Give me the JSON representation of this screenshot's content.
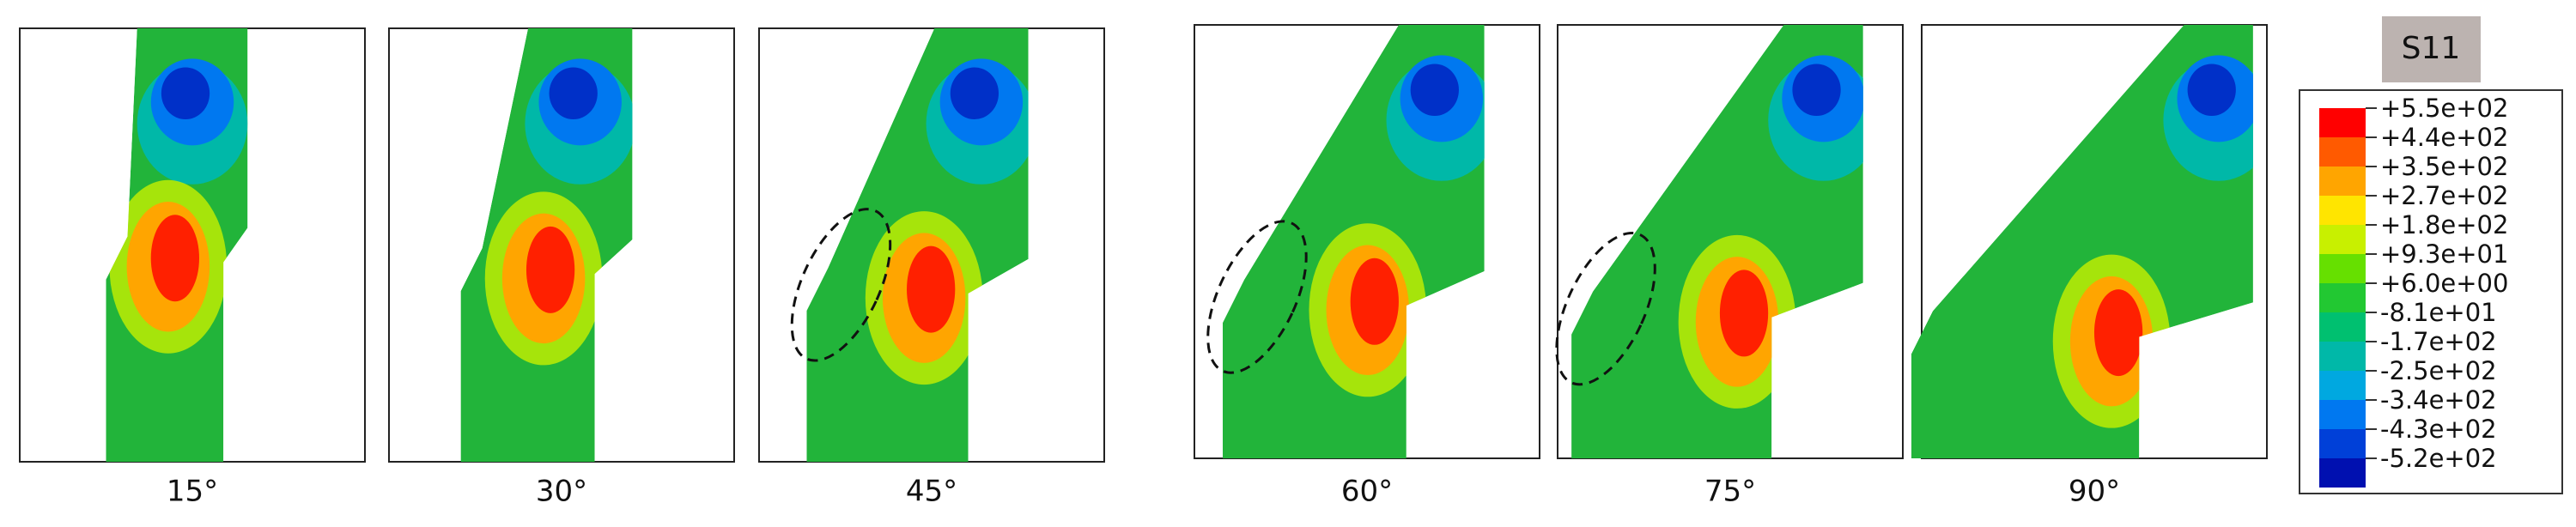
{
  "panels": [
    {
      "label": "15°"
    },
    {
      "label": "30°"
    },
    {
      "label": "45°"
    },
    {
      "label": "60°"
    },
    {
      "label": "75°"
    },
    {
      "label": "90°"
    }
  ],
  "legend": {
    "title": "S11",
    "levels": [
      {
        "label": "+5.5e+02",
        "color": "#ff0000"
      },
      {
        "label": "+4.4e+02",
        "color": "#ff5a00"
      },
      {
        "label": "+3.5e+02",
        "color": "#ffa500"
      },
      {
        "label": "+2.7e+02",
        "color": "#ffe500"
      },
      {
        "label": "+1.8e+02",
        "color": "#c8f000"
      },
      {
        "label": "+9.3e+01",
        "color": "#66e000"
      },
      {
        "label": "+6.0e+00",
        "color": "#22c832"
      },
      {
        "label": "-8.1e+01",
        "color": "#00c070"
      },
      {
        "label": "-1.7e+02",
        "color": "#00b8a8"
      },
      {
        "label": "-2.5e+02",
        "color": "#00a8e0"
      },
      {
        "label": "-3.4e+02",
        "color": "#0078f0"
      },
      {
        "label": "-4.3e+02",
        "color": "#0040d8"
      },
      {
        "label": "-5.2e+02",
        "color": "#0010b0"
      }
    ]
  }
}
